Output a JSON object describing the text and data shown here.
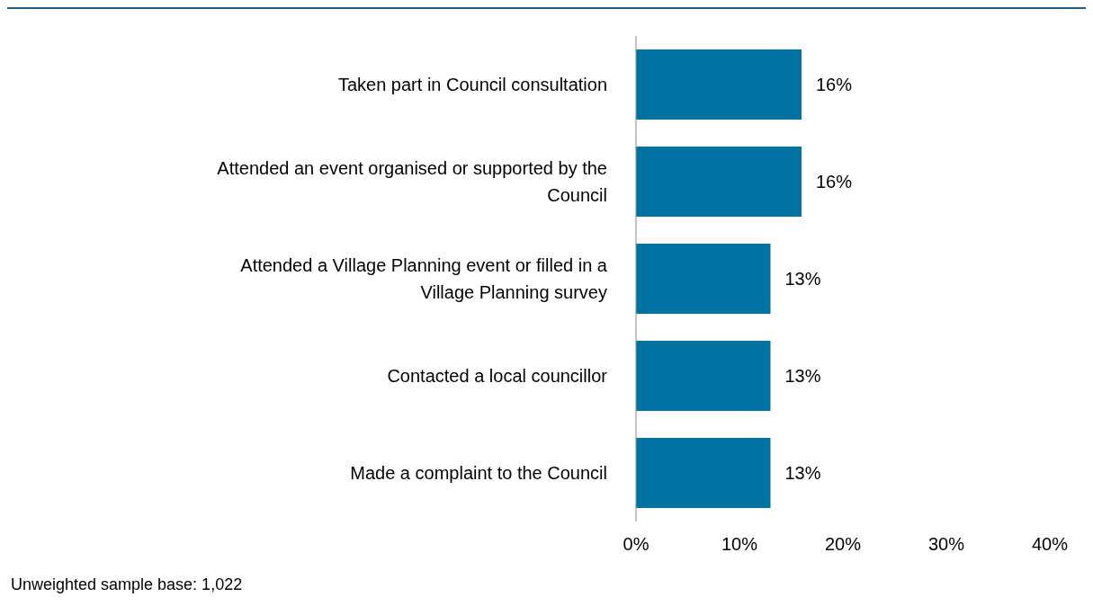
{
  "chart_data": {
    "type": "bar",
    "orientation": "horizontal",
    "categories": [
      "Taken part in Council consultation",
      "Attended an event organised or supported by the Council",
      "Attended a Village Planning event or filled in a Village Planning survey",
      "Contacted a local councillor",
      "Made a complaint to the Council"
    ],
    "values": [
      16,
      16,
      13,
      13,
      13
    ],
    "value_labels": [
      "16%",
      "16%",
      "13%",
      "13%",
      "13%"
    ],
    "color": "#0073a3",
    "xlim": [
      0,
      40
    ],
    "xticks": [
      {
        "value": 0,
        "label": "0%"
      },
      {
        "value": 10,
        "label": "10%"
      },
      {
        "value": 20,
        "label": "20%"
      },
      {
        "value": 30,
        "label": "30%"
      },
      {
        "value": 40,
        "label": "40%"
      }
    ],
    "grid": false,
    "annotations": [
      "Unweighted sample base: 1,022"
    ]
  }
}
